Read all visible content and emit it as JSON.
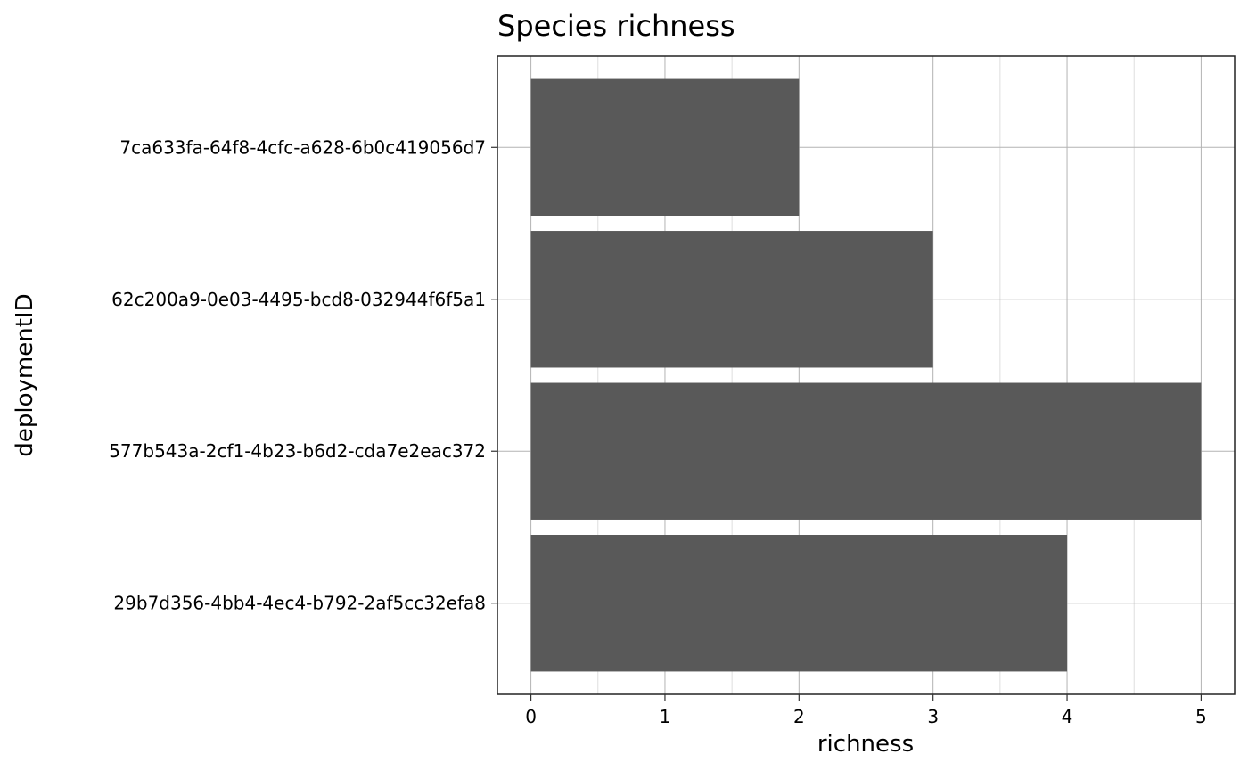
{
  "chart_data": {
    "type": "bar",
    "orientation": "horizontal",
    "title": "Species richness",
    "xlabel": "richness",
    "ylabel": "deploymentID",
    "categories": [
      "29b7d356-4bb4-4ec4-b792-2af5cc32efa8",
      "577b543a-2cf1-4b23-b6d2-cda7e2eac372",
      "62c200a9-0e03-4495-bcd8-032944f6f5a1",
      "7ca633fa-64f8-4cfc-a628-6b0c419056d7"
    ],
    "values": [
      4,
      5,
      3,
      2
    ],
    "xlim": [
      -0.25,
      5.25
    ],
    "xticks": [
      0,
      1,
      2,
      3,
      4,
      5
    ],
    "grid": true,
    "legend": "none",
    "bar_color": "#595959",
    "grid_major_color": "#b3b3b3",
    "grid_minor_color": "#dedede",
    "panel_border_color": "#333333"
  }
}
